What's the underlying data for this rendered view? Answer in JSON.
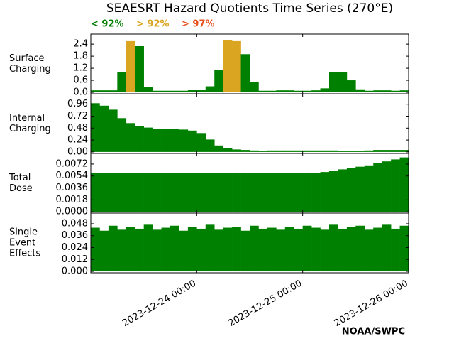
{
  "chart_data": {
    "type": "bar",
    "title": "SEAESRT Hazard Quotients Time Series (270°E)",
    "footer": "NOAA/SWPC",
    "x": [
      "2023-12-23 01:00",
      "2023-12-23 03:00",
      "2023-12-23 05:00",
      "2023-12-23 07:00",
      "2023-12-23 09:00",
      "2023-12-23 11:00",
      "2023-12-23 13:00",
      "2023-12-23 15:00",
      "2023-12-23 17:00",
      "2023-12-23 19:00",
      "2023-12-23 21:00",
      "2023-12-23 23:00",
      "2023-12-24 01:00",
      "2023-12-24 03:00",
      "2023-12-24 05:00",
      "2023-12-24 07:00",
      "2023-12-24 09:00",
      "2023-12-24 11:00",
      "2023-12-24 13:00",
      "2023-12-24 15:00",
      "2023-12-24 17:00",
      "2023-12-24 19:00",
      "2023-12-24 21:00",
      "2023-12-24 23:00",
      "2023-12-25 01:00",
      "2023-12-25 03:00",
      "2023-12-25 05:00",
      "2023-12-25 07:00",
      "2023-12-25 09:00",
      "2023-12-25 11:00",
      "2023-12-25 13:00",
      "2023-12-25 15:00",
      "2023-12-25 17:00",
      "2023-12-25 19:00",
      "2023-12-25 21:00",
      "2023-12-25 23:00"
    ],
    "xlim": [
      "2023-12-23 00:00",
      "2023-12-26 00:00"
    ],
    "xticks": [
      "2023-12-24 00:00",
      "2023-12-25 00:00",
      "2023-12-26 00:00"
    ],
    "panels": [
      {
        "ylabel": [
          "Surface",
          "Charging"
        ],
        "ylim": [
          -0.07,
          2.9
        ],
        "yticks": [
          {
            "value": 0,
            "label": "0.0"
          },
          0.6,
          1.2,
          1.8,
          2.4
        ],
        "series": [
          {
            "name": "< 92%",
            "color": "#008000",
            "values": [
              0.1,
              0.1,
              0.1,
              1.0,
              null,
              2.3,
              0.25,
              0.08,
              0.08,
              0.08,
              0.08,
              0.12,
              0.12,
              0.3,
              1.1,
              null,
              null,
              1.9,
              0.5,
              0.08,
              0.08,
              0.1,
              0.1,
              0.08,
              0.08,
              0.1,
              0.2,
              1.0,
              1.0,
              0.6,
              0.15,
              0.08,
              0.1,
              0.1,
              0.08,
              0.1
            ]
          },
          {
            "name": "> 92%",
            "color": "#daa520",
            "values": [
              null,
              null,
              null,
              null,
              2.55,
              null,
              null,
              null,
              null,
              null,
              null,
              null,
              null,
              null,
              null,
              2.6,
              2.55,
              null,
              null,
              null,
              null,
              null,
              null,
              null,
              null,
              null,
              null,
              null,
              null,
              null,
              null,
              null,
              null,
              null,
              null,
              null
            ]
          },
          {
            "name": "> 97%",
            "color": "#e8501e",
            "values": [
              null,
              null,
              null,
              null,
              null,
              null,
              null,
              null,
              null,
              null,
              null,
              null,
              null,
              null,
              null,
              null,
              null,
              null,
              null,
              null,
              null,
              null,
              null,
              null,
              null,
              null,
              null,
              null,
              null,
              null,
              null,
              null,
              null,
              null,
              null,
              null
            ]
          }
        ]
      },
      {
        "ylabel": [
          "Internal",
          "Charging"
        ],
        "ylim": [
          -0.03,
          1.17
        ],
        "color": "#008000",
        "yticks": [
          {
            "value": 0,
            "label": "0.00"
          },
          0.24,
          0.48,
          0.72,
          0.96
        ],
        "values": [
          0.98,
          0.93,
          0.85,
          0.68,
          0.58,
          0.52,
          0.49,
          0.47,
          0.46,
          0.46,
          0.45,
          0.43,
          0.38,
          0.25,
          0.13,
          0.08,
          0.05,
          0.04,
          0.03,
          0.02,
          0.03,
          0.03,
          0.03,
          0.03,
          0.03,
          0.03,
          0.03,
          0.03,
          0.02,
          0.02,
          0.02,
          0.03,
          0.04,
          0.04,
          0.04,
          0.04
        ]
      },
      {
        "ylabel": [
          "Total",
          "Dose"
        ],
        "ylim": [
          -0.0002,
          0.0088
        ],
        "color": "#008000",
        "yticks": [
          {
            "value": 0,
            "label": "0.0000"
          },
          0.0018,
          0.0036,
          0.0054,
          0.0072
        ],
        "values": [
          0.0059,
          0.0059,
          0.0059,
          0.0059,
          0.0059,
          0.0059,
          0.0059,
          0.0059,
          0.0059,
          0.0059,
          0.0059,
          0.0059,
          0.0059,
          0.0059,
          0.0058,
          0.0058,
          0.0058,
          0.0058,
          0.0058,
          0.0058,
          0.0058,
          0.0058,
          0.0058,
          0.0058,
          0.0058,
          0.0059,
          0.006,
          0.0062,
          0.0064,
          0.0066,
          0.0068,
          0.007,
          0.0073,
          0.0076,
          0.0079,
          0.0082
        ]
      },
      {
        "ylabel": [
          "Single",
          "Event",
          "Effects"
        ],
        "ylim": [
          -0.0014,
          0.0587
        ],
        "color": "#008000",
        "yticks": [
          {
            "value": 0,
            "label": "0.000"
          },
          0.012,
          0.024,
          0.036,
          0.048
        ],
        "values": [
          0.044,
          0.041,
          0.046,
          0.042,
          0.045,
          0.043,
          0.047,
          0.042,
          0.044,
          0.046,
          0.041,
          0.045,
          0.043,
          0.047,
          0.042,
          0.044,
          0.045,
          0.041,
          0.046,
          0.043,
          0.044,
          0.042,
          0.045,
          0.043,
          0.046,
          0.044,
          0.042,
          0.047,
          0.043,
          0.045,
          0.046,
          0.042,
          0.044,
          0.047,
          0.043,
          0.046
        ]
      }
    ]
  }
}
